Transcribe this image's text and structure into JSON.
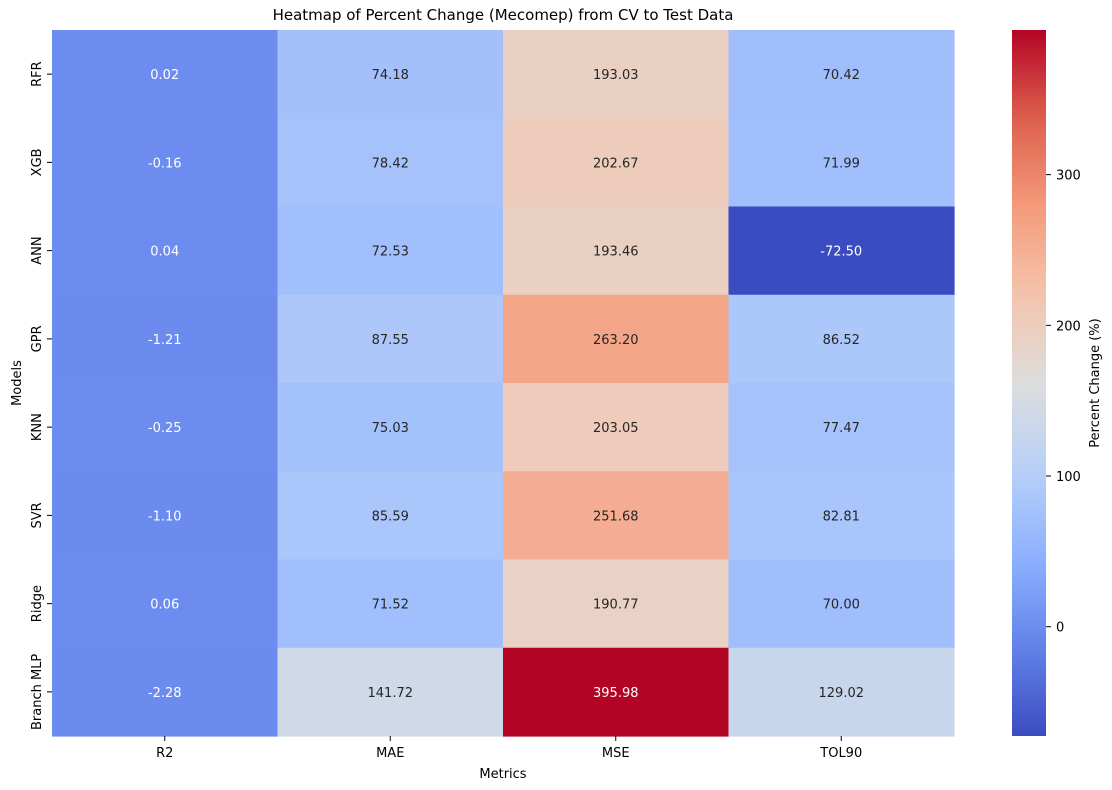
{
  "chart_data": {
    "type": "heatmap",
    "title": "Heatmap of Percent Change (Mecomep) from CV to Test Data",
    "xlabel": "Metrics",
    "ylabel": "Models",
    "colorbar_label": "Percent Change (%)",
    "colormap": "coolwarm",
    "colorbar_range": [
      -72.5,
      395.98
    ],
    "colorbar_ticks": [
      0,
      100,
      200,
      300
    ],
    "columns": [
      "R2",
      "MAE",
      "MSE",
      "TOL90"
    ],
    "rows": [
      "RFR",
      "XGB",
      "ANN",
      "GPR",
      "KNN",
      "SVR",
      "Ridge",
      "Branch MLP"
    ],
    "values": [
      [
        0.02,
        74.18,
        193.03,
        70.42
      ],
      [
        -0.16,
        78.42,
        202.67,
        71.99
      ],
      [
        0.04,
        72.53,
        193.46,
        -72.5
      ],
      [
        -1.21,
        87.55,
        263.2,
        86.52
      ],
      [
        -0.25,
        75.03,
        203.05,
        77.47
      ],
      [
        -1.1,
        85.59,
        251.68,
        82.81
      ],
      [
        0.06,
        71.52,
        190.77,
        70.0
      ],
      [
        -2.28,
        141.72,
        395.98,
        129.02
      ]
    ]
  }
}
